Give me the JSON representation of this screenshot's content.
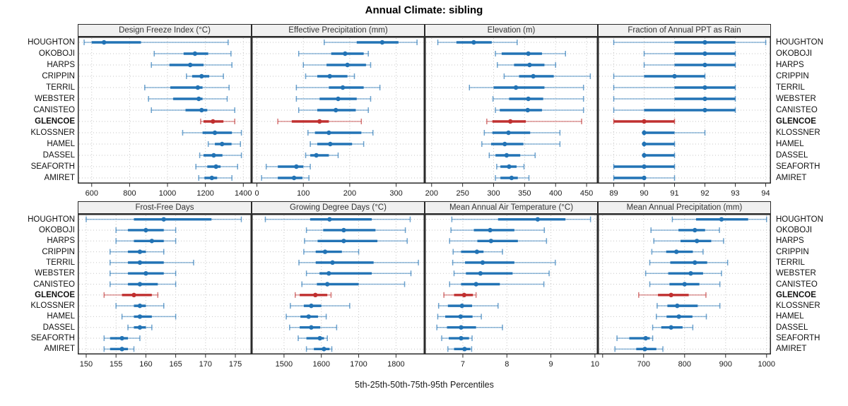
{
  "chart_data": {
    "type": "dotplot",
    "title": "Annual Climate: sibling",
    "xlabel": "5th-25th-50th-75th-95th Percentiles",
    "percentiles": [
      5,
      25,
      50,
      75,
      95
    ],
    "legend_position": "none",
    "grid": "dotted",
    "sites": [
      "HOUGHTON",
      "OKOBOJI",
      "HARPS",
      "CRIPPIN",
      "TERRIL",
      "WEBSTER",
      "CANISTEO",
      "GLENCOE",
      "KLOSSNER",
      "HAMEL",
      "DASSEL",
      "SEAFORTH",
      "AMIRET"
    ],
    "highlight_site": "GLENCOE",
    "colors": {
      "series_blue": "#2273b5",
      "highlight_red": "#c03030",
      "grid_gray": "#c6c6c6",
      "panel_border": "#2a2a2a",
      "strip_bg": "#f0f0f0",
      "strip_text": "#333333",
      "tick_text": "#1a1a1a"
    },
    "panels": [
      {
        "title": "Design Freeze Index (°C)",
        "xlim": [
          530,
          1440
        ],
        "ticks": [
          600,
          800,
          1000,
          1200,
          1400
        ],
        "values": [
          [
            560,
            600,
            665,
            860,
            1320
          ],
          [
            930,
            1085,
            1145,
            1215,
            1335
          ],
          [
            915,
            1010,
            1120,
            1190,
            1340
          ],
          [
            1100,
            1130,
            1180,
            1220,
            1295
          ],
          [
            880,
            1015,
            1160,
            1185,
            1325
          ],
          [
            900,
            1030,
            1165,
            1185,
            1315
          ],
          [
            915,
            1095,
            1180,
            1210,
            1355
          ],
          [
            1175,
            1190,
            1240,
            1295,
            1355
          ],
          [
            1080,
            1185,
            1250,
            1340,
            1390
          ],
          [
            1215,
            1250,
            1288,
            1338,
            1385
          ],
          [
            1170,
            1190,
            1244,
            1290,
            1390
          ],
          [
            1150,
            1210,
            1256,
            1280,
            1370
          ],
          [
            1165,
            1195,
            1234,
            1262,
            1340
          ]
        ]
      },
      {
        "title": "Effective Precipitation (mm)",
        "xlim": [
          -10,
          360
        ],
        "ticks": [
          0,
          100,
          200,
          300
        ],
        "values": [
          [
            145,
            215,
            270,
            305,
            345
          ],
          [
            90,
            160,
            190,
            230,
            240
          ],
          [
            100,
            150,
            195,
            235,
            245
          ],
          [
            105,
            130,
            157,
            195,
            210
          ],
          [
            85,
            155,
            185,
            230,
            265
          ],
          [
            85,
            135,
            175,
            215,
            245
          ],
          [
            90,
            130,
            170,
            213,
            240
          ],
          [
            45,
            75,
            135,
            155,
            225
          ],
          [
            110,
            125,
            155,
            225,
            250
          ],
          [
            115,
            130,
            158,
            205,
            230
          ],
          [
            105,
            115,
            128,
            155,
            175
          ],
          [
            20,
            45,
            85,
            100,
            115
          ],
          [
            10,
            45,
            80,
            98,
            112
          ]
        ]
      },
      {
        "title": "Elevation (m)",
        "xlim": [
          190,
          467
        ],
        "ticks": [
          200,
          250,
          300,
          350,
          400,
          450
        ],
        "values": [
          [
            210,
            240,
            268,
            297,
            338
          ],
          [
            303,
            313,
            356,
            378,
            416
          ],
          [
            306,
            333,
            358,
            382,
            400
          ],
          [
            317,
            341,
            364,
            397,
            456
          ],
          [
            261,
            300,
            336,
            382,
            445
          ],
          [
            299,
            325,
            356,
            380,
            445
          ],
          [
            303,
            310,
            355,
            378,
            445
          ],
          [
            289,
            298,
            327,
            352,
            442
          ],
          [
            285,
            298,
            324,
            359,
            407
          ],
          [
            281,
            296,
            318,
            348,
            407
          ],
          [
            293,
            303,
            321,
            343,
            367
          ],
          [
            305,
            311,
            325,
            337,
            349
          ],
          [
            303,
            311,
            329,
            339,
            357
          ]
        ]
      },
      {
        "title": "Fraction of Annual PPT as Rain",
        "xlim": [
          88.5,
          94.15
        ],
        "ticks": [
          89,
          90,
          91,
          92,
          93,
          94
        ],
        "values": [
          [
            89,
            91,
            92,
            93,
            94
          ],
          [
            90,
            91,
            92,
            93,
            93
          ],
          [
            90,
            91,
            92,
            93,
            93
          ],
          [
            89,
            90,
            91,
            92,
            92
          ],
          [
            89,
            91,
            92,
            93,
            93
          ],
          [
            89,
            91,
            92,
            93,
            93
          ],
          [
            89,
            90,
            92,
            93,
            93
          ],
          [
            89,
            89,
            90,
            91,
            91
          ],
          [
            90,
            90,
            90,
            91,
            92
          ],
          [
            90,
            90,
            90,
            91,
            91
          ],
          [
            90,
            90,
            90,
            91,
            91
          ],
          [
            89,
            89,
            90,
            91,
            91
          ],
          [
            89,
            89,
            90,
            90,
            91
          ]
        ]
      },
      {
        "title": "Frost-Free Days",
        "xlim": [
          148.7,
          177.6
        ],
        "ticks": [
          150,
          155,
          160,
          165,
          170,
          175
        ],
        "values": [
          [
            150,
            158,
            163,
            171,
            176
          ],
          [
            155,
            157,
            160,
            163,
            165
          ],
          [
            155,
            158,
            161,
            163,
            165
          ],
          [
            154,
            157,
            159,
            160,
            163
          ],
          [
            154,
            157,
            159,
            163,
            168
          ],
          [
            154,
            157,
            160,
            163,
            165
          ],
          [
            154,
            157,
            159,
            162,
            165
          ],
          [
            153,
            156,
            158,
            161,
            162
          ],
          [
            155,
            158,
            159,
            160,
            163
          ],
          [
            156,
            158,
            159,
            161,
            165
          ],
          [
            157,
            158,
            159,
            160,
            161
          ],
          [
            153,
            154,
            156,
            157,
            159
          ],
          [
            153,
            154,
            156,
            157,
            158
          ]
        ]
      },
      {
        "title": "Growing Degree Days (°C)",
        "xlim": [
          1415,
          1875
        ],
        "ticks": [
          1500,
          1600,
          1700,
          1800
        ],
        "values": [
          [
            1450,
            1570,
            1622,
            1735,
            1838
          ],
          [
            1560,
            1605,
            1660,
            1745,
            1825
          ],
          [
            1555,
            1590,
            1660,
            1750,
            1830
          ],
          [
            1553,
            1585,
            1610,
            1655,
            1700
          ],
          [
            1540,
            1585,
            1630,
            1740,
            1860
          ],
          [
            1560,
            1595,
            1620,
            1735,
            1840
          ],
          [
            1548,
            1588,
            1616,
            1700,
            1823
          ],
          [
            1530,
            1542,
            1584,
            1616,
            1626
          ],
          [
            1517,
            1553,
            1573,
            1600,
            1676
          ],
          [
            1506,
            1544,
            1566,
            1591,
            1613
          ],
          [
            1515,
            1542,
            1573,
            1597,
            1641
          ],
          [
            1538,
            1560,
            1596,
            1607,
            1616
          ],
          [
            1560,
            1580,
            1607,
            1622,
            1628
          ]
        ]
      },
      {
        "title": "Mean Annual Air Temperature (°C)",
        "xlim": [
          6.15,
          10.05
        ],
        "ticks": [
          7,
          8,
          9,
          10
        ],
        "values": [
          [
            6.75,
            7.8,
            8.7,
            9.33,
            9.9
          ],
          [
            6.73,
            7.25,
            7.62,
            8.17,
            8.85
          ],
          [
            6.7,
            7.33,
            7.64,
            8.25,
            8.9
          ],
          [
            6.78,
            6.96,
            7.32,
            7.47,
            7.9
          ],
          [
            6.77,
            7.05,
            7.45,
            8.17,
            9.1
          ],
          [
            6.8,
            7.07,
            7.4,
            8.13,
            8.96
          ],
          [
            6.7,
            6.96,
            7.3,
            7.84,
            8.84
          ],
          [
            6.57,
            6.8,
            7.03,
            7.23,
            7.3
          ],
          [
            6.45,
            6.66,
            6.98,
            7.21,
            7.8
          ],
          [
            6.43,
            6.6,
            6.95,
            7.22,
            7.42
          ],
          [
            6.41,
            6.64,
            6.96,
            7.3,
            7.9
          ],
          [
            6.52,
            6.68,
            6.96,
            7.14,
            7.21
          ],
          [
            6.66,
            6.8,
            7.04,
            7.17,
            7.2
          ]
        ]
      },
      {
        "title": "Mean Annual Precipitation (mm)",
        "xlim": [
          590,
          1009
        ],
        "ticks": [
          600,
          700,
          800,
          900,
          1000
        ],
        "tick_labels": [
          "",
          "700",
          "800",
          "900",
          "1000"
        ],
        "values": [
          [
            770,
            828,
            890,
            955,
            1000
          ],
          [
            718,
            785,
            825,
            850,
            885
          ],
          [
            725,
            790,
            830,
            865,
            895
          ],
          [
            720,
            755,
            780,
            820,
            845
          ],
          [
            715,
            765,
            825,
            855,
            905
          ],
          [
            705,
            760,
            815,
            845,
            890
          ],
          [
            715,
            763,
            800,
            836,
            886
          ],
          [
            688,
            735,
            767,
            810,
            852
          ],
          [
            733,
            758,
            782,
            832,
            886
          ],
          [
            731,
            756,
            786,
            819,
            853
          ],
          [
            722,
            743,
            767,
            795,
            820
          ],
          [
            635,
            665,
            705,
            715,
            722
          ],
          [
            630,
            682,
            703,
            731,
            747
          ]
        ]
      }
    ]
  }
}
